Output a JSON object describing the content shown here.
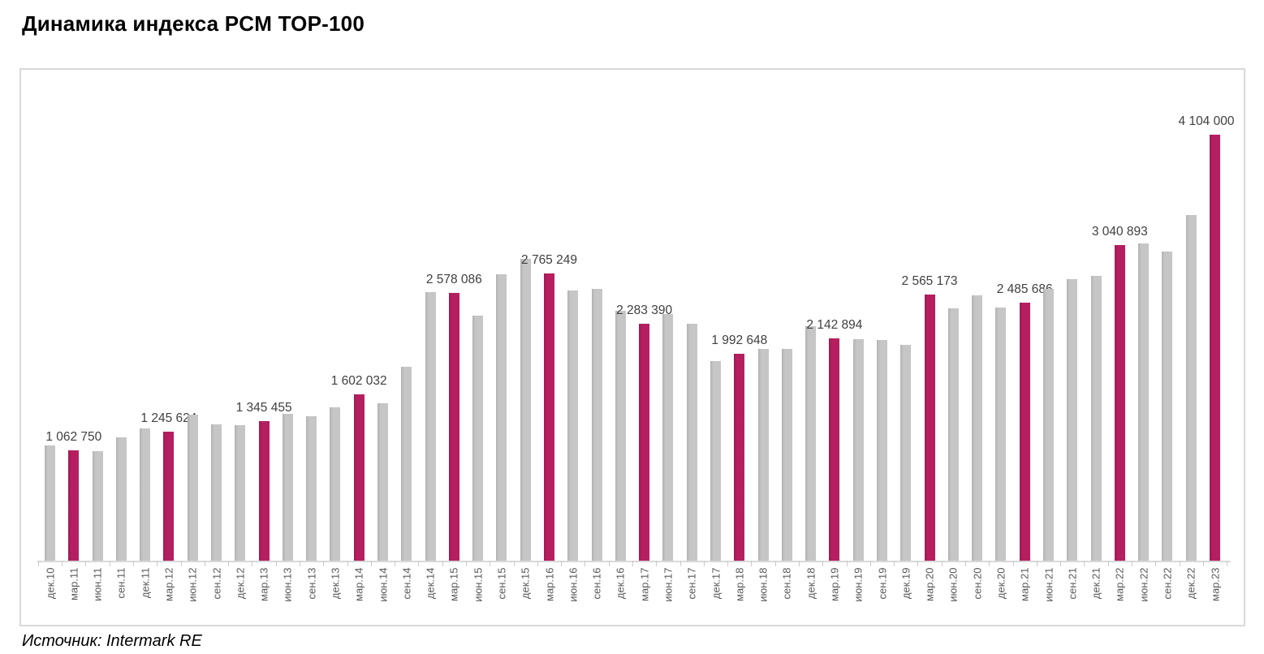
{
  "page": {
    "title": "Динамика индекса PCM TOP-100",
    "source": "Источник: Intermark RE"
  },
  "chart_data": {
    "type": "bar",
    "title": "Динамика индекса PCM TOP-100",
    "source": "Источник: Intermark RE",
    "xlabel": "",
    "ylabel": "",
    "ylim": [
      0,
      4750000
    ],
    "grid": false,
    "legend": false,
    "categories": [
      "дек.10",
      "мар.11",
      "июн.11",
      "сен.11",
      "дек.11",
      "мар.12",
      "июн.12",
      "сен.12",
      "дек.12",
      "мар.13",
      "июн.13",
      "сен.13",
      "дек.13",
      "мар.14",
      "июн.14",
      "сен.14",
      "дек.14",
      "мар.15",
      "июн.15",
      "сен.15",
      "дек.15",
      "мар.16",
      "июн.16",
      "сен.16",
      "дек.16",
      "мар.17",
      "июн.17",
      "сен.17",
      "дек.17",
      "мар.18",
      "июн.18",
      "сен.18",
      "дек.18",
      "мар.19",
      "июн.19",
      "сен.19",
      "дек.19",
      "мар.20",
      "июн.20",
      "сен.20",
      "дек.20",
      "мар.21",
      "июн.21",
      "сен.21",
      "дек.21",
      "мар.22",
      "июн.22",
      "сен.22",
      "дек.22",
      "мар.23"
    ],
    "values": [
      1110000,
      1062750,
      1055000,
      1188000,
      1275000,
      1245624,
      1408000,
      1314000,
      1306000,
      1345455,
      1415000,
      1392000,
      1478000,
      1602032,
      1517000,
      1869000,
      2585000,
      2578086,
      2362000,
      2760000,
      2910000,
      2765249,
      2605000,
      2620000,
      2410000,
      2283390,
      2375000,
      2280000,
      1925000,
      1992648,
      2040000,
      2045000,
      2260000,
      2142894,
      2135000,
      2125000,
      2080000,
      2565173,
      2430000,
      2560000,
      2440000,
      2485686,
      2620000,
      2715000,
      2745000,
      3040893,
      3060000,
      2980000,
      3330000,
      4104000
    ],
    "highlighted_indices": [
      1,
      5,
      9,
      13,
      17,
      21,
      25,
      29,
      33,
      37,
      41,
      45,
      49
    ],
    "data_labels": [
      "",
      "1 062 750",
      "",
      "",
      "",
      "1 245 624",
      "",
      "",
      "",
      "1 345 455",
      "",
      "",
      "",
      "1 602 032",
      "",
      "",
      "",
      "2 578 086",
      "",
      "",
      "",
      "2 765 249",
      "",
      "",
      "",
      "2 283 390",
      "",
      "",
      "",
      "1 992 648",
      "",
      "",
      "",
      "2 142 894",
      "",
      "",
      "",
      "2 565 173",
      "",
      "",
      "",
      "2 485 686",
      "",
      "",
      "",
      "3 040 893",
      "",
      "",
      "",
      "4 104 000"
    ],
    "colors": {
      "bar": "#C6C6C6",
      "bar_edge": "#B2B2B2",
      "highlight": "#B61F5F",
      "highlight_edge": "#9D1B53",
      "axis_line": "#D9D9D9",
      "tick": "#C9C9C9",
      "frame_border": "#D9D9D9",
      "value_label": "#404040",
      "axis_label": "#595959",
      "title": "#000000"
    }
  }
}
